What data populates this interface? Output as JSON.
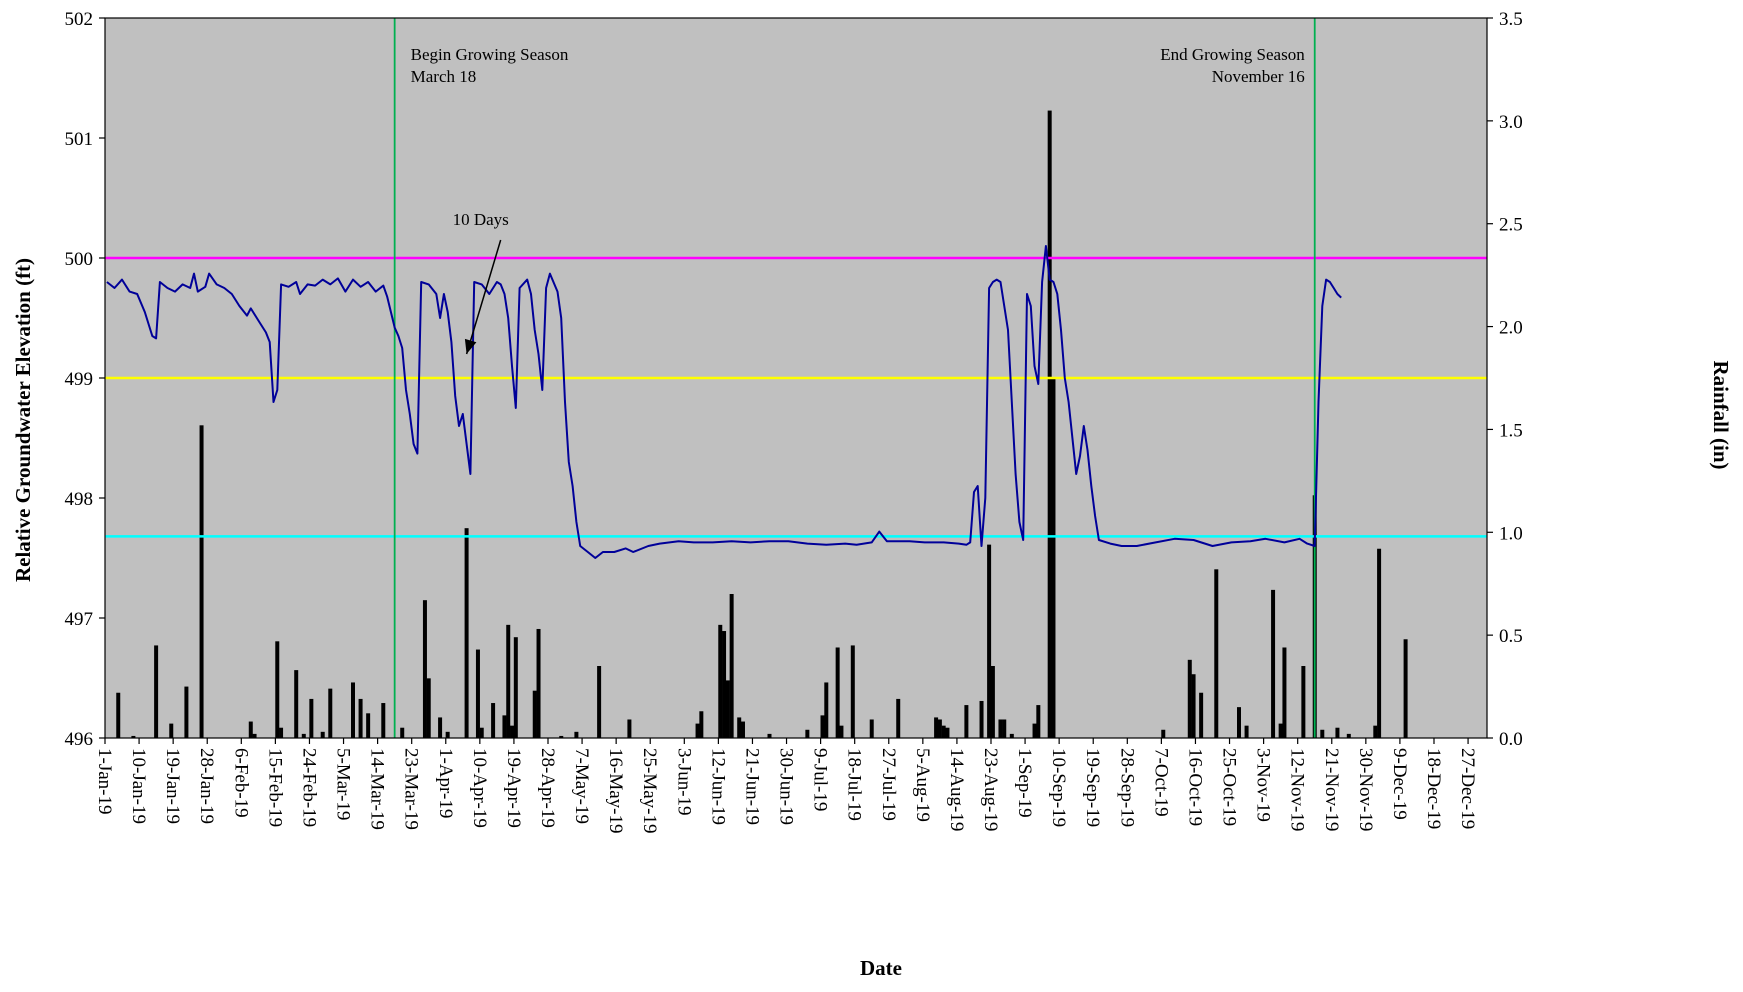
{
  "chart_data": {
    "type": "bar+line",
    "xlabel": "Date",
    "y1label": "Relative Groundwater Elevation (ft)",
    "y2label": "Rainfall (in)",
    "x_range": [
      "2019-01-01",
      "2019-12-31"
    ],
    "y1lim": [
      496,
      502
    ],
    "y1ticks": [
      "496",
      "497",
      "498",
      "499",
      "500",
      "501",
      "502"
    ],
    "y2lim": [
      0,
      3.5
    ],
    "y2ticks": [
      "0.0",
      "0.5",
      "1.0",
      "1.5",
      "2.0",
      "2.5",
      "3.0",
      "3.5"
    ],
    "x_tick_dates": [
      "2019-01-01",
      "2019-01-10",
      "2019-01-19",
      "2019-01-28",
      "2019-02-06",
      "2019-02-15",
      "2019-02-24",
      "2019-03-05",
      "2019-03-14",
      "2019-03-23",
      "2019-04-01",
      "2019-04-10",
      "2019-04-19",
      "2019-04-28",
      "2019-05-07",
      "2019-05-16",
      "2019-05-25",
      "2019-06-03",
      "2019-06-12",
      "2019-06-21",
      "2019-06-30",
      "2019-07-09",
      "2019-07-18",
      "2019-07-27",
      "2019-08-05",
      "2019-08-14",
      "2019-08-23",
      "2019-09-01",
      "2019-09-10",
      "2019-09-19",
      "2019-09-28",
      "2019-10-07",
      "2019-10-16",
      "2019-10-25",
      "2019-11-03",
      "2019-11-12",
      "2019-11-21",
      "2019-11-30",
      "2019-12-09",
      "2019-12-18",
      "2019-12-27"
    ],
    "x_tick_labels": [
      "1-Jan-19",
      "10-Jan-19",
      "19-Jan-19",
      "28-Jan-19",
      "6-Feb-19",
      "15-Feb-19",
      "24-Feb-19",
      "5-Mar-19",
      "14-Mar-19",
      "23-Mar-19",
      "1-Apr-19",
      "10-Apr-19",
      "19-Apr-19",
      "28-Apr-19",
      "7-May-19",
      "16-May-19",
      "25-May-19",
      "3-Jun-19",
      "12-Jun-19",
      "21-Jun-19",
      "30-Jun-19",
      "9-Jul-19",
      "18-Jul-19",
      "27-Jul-19",
      "5-Aug-19",
      "14-Aug-19",
      "23-Aug-19",
      "1-Sep-19",
      "10-Sep-19",
      "19-Sep-19",
      "28-Sep-19",
      "7-Oct-19",
      "16-Oct-19",
      "25-Oct-19",
      "3-Nov-19",
      "12-Nov-19",
      "21-Nov-19",
      "30-Nov-19",
      "9-Dec-19",
      "18-Dec-19",
      "27-Dec-19"
    ],
    "reference_lines": [
      {
        "y": 500.0,
        "color": "#ff00ff"
      },
      {
        "y": 499.0,
        "color": "#ffff00"
      },
      {
        "y": 497.68,
        "color": "#00ffff"
      }
    ],
    "vertical_markers": [
      {
        "date": "2019-03-18",
        "color": "#00b050",
        "text": [
          "Begin Growing Season",
          "March 18"
        ],
        "align": "left"
      },
      {
        "date": "2019-11-16",
        "color": "#00b050",
        "text": [
          "End Growing Season",
          "November 16"
        ],
        "align": "right"
      }
    ],
    "arrow_annotation": {
      "text": "10 Days",
      "from": [
        "2019-04-15",
        500.15
      ],
      "to": [
        "2019-04-06",
        499.2
      ]
    },
    "plot_background": "#c0c0c0",
    "groundwater": {
      "axis": "left",
      "color": "#000099",
      "points": [
        [
          "2019-01-01",
          499.8
        ],
        [
          "2019-01-03",
          499.75
        ],
        [
          "2019-01-05",
          499.82
        ],
        [
          "2019-01-07",
          499.72
        ],
        [
          "2019-01-09",
          499.7
        ],
        [
          "2019-01-11",
          499.55
        ],
        [
          "2019-01-13",
          499.35
        ],
        [
          "2019-01-14",
          499.33
        ],
        [
          "2019-01-15",
          499.8
        ],
        [
          "2019-01-17",
          499.75
        ],
        [
          "2019-01-19",
          499.72
        ],
        [
          "2019-01-21",
          499.78
        ],
        [
          "2019-01-23",
          499.75
        ],
        [
          "2019-01-24",
          499.87
        ],
        [
          "2019-01-25",
          499.72
        ],
        [
          "2019-01-27",
          499.76
        ],
        [
          "2019-01-28",
          499.87
        ],
        [
          "2019-01-30",
          499.78
        ],
        [
          "2019-02-01",
          499.75
        ],
        [
          "2019-02-03",
          499.7
        ],
        [
          "2019-02-05",
          499.6
        ],
        [
          "2019-02-07",
          499.52
        ],
        [
          "2019-02-08",
          499.58
        ],
        [
          "2019-02-10",
          499.48
        ],
        [
          "2019-02-12",
          499.38
        ],
        [
          "2019-02-13",
          499.3
        ],
        [
          "2019-02-14",
          498.8
        ],
        [
          "2019-02-15",
          498.9
        ],
        [
          "2019-02-16",
          499.78
        ],
        [
          "2019-02-18",
          499.76
        ],
        [
          "2019-02-20",
          499.8
        ],
        [
          "2019-02-21",
          499.7
        ],
        [
          "2019-02-23",
          499.78
        ],
        [
          "2019-02-25",
          499.77
        ],
        [
          "2019-02-27",
          499.82
        ],
        [
          "2019-03-01",
          499.78
        ],
        [
          "2019-03-03",
          499.83
        ],
        [
          "2019-03-05",
          499.72
        ],
        [
          "2019-03-07",
          499.82
        ],
        [
          "2019-03-09",
          499.76
        ],
        [
          "2019-03-11",
          499.8
        ],
        [
          "2019-03-13",
          499.72
        ],
        [
          "2019-03-15",
          499.77
        ],
        [
          "2019-03-16",
          499.68
        ],
        [
          "2019-03-17",
          499.55
        ],
        [
          "2019-03-18",
          499.42
        ],
        [
          "2019-03-19",
          499.35
        ],
        [
          "2019-03-20",
          499.25
        ],
        [
          "2019-03-21",
          498.9
        ],
        [
          "2019-03-22",
          498.7
        ],
        [
          "2019-03-23",
          498.45
        ],
        [
          "2019-03-24",
          498.37
        ],
        [
          "2019-03-25",
          499.8
        ],
        [
          "2019-03-27",
          499.78
        ],
        [
          "2019-03-29",
          499.7
        ],
        [
          "2019-03-30",
          499.5
        ],
        [
          "2019-03-31",
          499.7
        ],
        [
          "2019-04-01",
          499.55
        ],
        [
          "2019-04-02",
          499.3
        ],
        [
          "2019-04-03",
          498.85
        ],
        [
          "2019-04-04",
          498.6
        ],
        [
          "2019-04-05",
          498.7
        ],
        [
          "2019-04-07",
          498.2
        ],
        [
          "2019-04-08",
          499.8
        ],
        [
          "2019-04-10",
          499.78
        ],
        [
          "2019-04-12",
          499.7
        ],
        [
          "2019-04-14",
          499.8
        ],
        [
          "2019-04-15",
          499.78
        ],
        [
          "2019-04-16",
          499.7
        ],
        [
          "2019-04-17",
          499.5
        ],
        [
          "2019-04-18",
          499.1
        ],
        [
          "2019-04-19",
          498.75
        ],
        [
          "2019-04-20",
          499.75
        ],
        [
          "2019-04-22",
          499.82
        ],
        [
          "2019-04-23",
          499.7
        ],
        [
          "2019-04-24",
          499.4
        ],
        [
          "2019-04-25",
          499.2
        ],
        [
          "2019-04-26",
          498.9
        ],
        [
          "2019-04-27",
          499.75
        ],
        [
          "2019-04-28",
          499.87
        ],
        [
          "2019-04-30",
          499.72
        ],
        [
          "2019-05-01",
          499.5
        ],
        [
          "2019-05-02",
          498.8
        ],
        [
          "2019-05-03",
          498.3
        ],
        [
          "2019-05-04",
          498.1
        ],
        [
          "2019-05-05",
          497.8
        ],
        [
          "2019-05-06",
          497.6
        ],
        [
          "2019-05-08",
          497.55
        ],
        [
          "2019-05-10",
          497.5
        ],
        [
          "2019-05-12",
          497.55
        ],
        [
          "2019-05-15",
          497.55
        ],
        [
          "2019-05-18",
          497.58
        ],
        [
          "2019-05-20",
          497.55
        ],
        [
          "2019-05-24",
          497.6
        ],
        [
          "2019-05-27",
          497.62
        ],
        [
          "2019-06-01",
          497.64
        ],
        [
          "2019-06-05",
          497.63
        ],
        [
          "2019-06-10",
          497.63
        ],
        [
          "2019-06-15",
          497.64
        ],
        [
          "2019-06-20",
          497.63
        ],
        [
          "2019-06-25",
          497.64
        ],
        [
          "2019-06-30",
          497.64
        ],
        [
          "2019-07-05",
          497.62
        ],
        [
          "2019-07-10",
          497.61
        ],
        [
          "2019-07-15",
          497.62
        ],
        [
          "2019-07-18",
          497.61
        ],
        [
          "2019-07-22",
          497.63
        ],
        [
          "2019-07-24",
          497.72
        ],
        [
          "2019-07-26",
          497.64
        ],
        [
          "2019-08-01",
          497.64
        ],
        [
          "2019-08-05",
          497.63
        ],
        [
          "2019-08-10",
          497.63
        ],
        [
          "2019-08-14",
          497.62
        ],
        [
          "2019-08-16",
          497.61
        ],
        [
          "2019-08-17",
          497.63
        ],
        [
          "2019-08-18",
          498.05
        ],
        [
          "2019-08-19",
          498.1
        ],
        [
          "2019-08-20",
          497.6
        ],
        [
          "2019-08-21",
          498.0
        ],
        [
          "2019-08-22",
          499.75
        ],
        [
          "2019-08-23",
          499.8
        ],
        [
          "2019-08-24",
          499.82
        ],
        [
          "2019-08-25",
          499.8
        ],
        [
          "2019-08-27",
          499.4
        ],
        [
          "2019-08-28",
          498.8
        ],
        [
          "2019-08-29",
          498.2
        ],
        [
          "2019-08-30",
          497.8
        ],
        [
          "2019-08-31",
          497.65
        ],
        [
          "2019-09-01",
          499.7
        ],
        [
          "2019-09-02",
          499.6
        ],
        [
          "2019-09-03",
          499.1
        ],
        [
          "2019-09-04",
          498.95
        ],
        [
          "2019-09-05",
          499.8
        ],
        [
          "2019-09-06",
          500.1
        ],
        [
          "2019-09-07",
          499.82
        ],
        [
          "2019-09-08",
          499.8
        ],
        [
          "2019-09-09",
          499.7
        ],
        [
          "2019-09-10",
          499.4
        ],
        [
          "2019-09-11",
          499.0
        ],
        [
          "2019-09-12",
          498.8
        ],
        [
          "2019-09-13",
          498.5
        ],
        [
          "2019-09-14",
          498.2
        ],
        [
          "2019-09-15",
          498.35
        ],
        [
          "2019-09-16",
          498.6
        ],
        [
          "2019-09-17",
          498.4
        ],
        [
          "2019-09-18",
          498.1
        ],
        [
          "2019-09-19",
          497.85
        ],
        [
          "2019-09-20",
          497.65
        ],
        [
          "2019-09-23",
          497.62
        ],
        [
          "2019-09-26",
          497.6
        ],
        [
          "2019-09-30",
          497.6
        ],
        [
          "2019-10-05",
          497.63
        ],
        [
          "2019-10-10",
          497.66
        ],
        [
          "2019-10-15",
          497.65
        ],
        [
          "2019-10-20",
          497.6
        ],
        [
          "2019-10-25",
          497.63
        ],
        [
          "2019-10-30",
          497.64
        ],
        [
          "2019-11-03",
          497.66
        ],
        [
          "2019-11-08",
          497.63
        ],
        [
          "2019-11-12",
          497.66
        ],
        [
          "2019-11-14",
          497.62
        ],
        [
          "2019-11-16",
          497.6
        ],
        [
          "2019-11-17",
          498.8
        ],
        [
          "2019-11-18",
          499.6
        ],
        [
          "2019-11-19",
          499.82
        ],
        [
          "2019-11-20",
          499.8
        ],
        [
          "2019-11-21",
          499.75
        ],
        [
          "2019-11-22",
          499.7
        ],
        [
          "2019-11-23",
          499.67
        ]
      ]
    },
    "rainfall": {
      "axis": "right",
      "color": "#000000",
      "bars": [
        [
          "2019-01-04",
          0.22
        ],
        [
          "2019-01-08",
          0.01
        ],
        [
          "2019-01-14",
          0.45
        ],
        [
          "2019-01-18",
          0.07
        ],
        [
          "2019-01-22",
          0.25
        ],
        [
          "2019-01-26",
          1.52
        ],
        [
          "2019-02-08",
          0.08
        ],
        [
          "2019-02-09",
          0.02
        ],
        [
          "2019-02-15",
          0.47
        ],
        [
          "2019-02-16",
          0.05
        ],
        [
          "2019-02-20",
          0.33
        ],
        [
          "2019-02-22",
          0.02
        ],
        [
          "2019-02-24",
          0.19
        ],
        [
          "2019-02-27",
          0.03
        ],
        [
          "2019-03-01",
          0.24
        ],
        [
          "2019-03-07",
          0.27
        ],
        [
          "2019-03-09",
          0.19
        ],
        [
          "2019-03-11",
          0.12
        ],
        [
          "2019-03-15",
          0.17
        ],
        [
          "2019-03-20",
          0.05
        ],
        [
          "2019-03-26",
          0.67
        ],
        [
          "2019-03-27",
          0.29
        ],
        [
          "2019-03-30",
          0.1
        ],
        [
          "2019-04-01",
          0.03
        ],
        [
          "2019-04-06",
          1.02
        ],
        [
          "2019-04-09",
          0.43
        ],
        [
          "2019-04-10",
          0.05
        ],
        [
          "2019-04-13",
          0.17
        ],
        [
          "2019-04-16",
          0.11
        ],
        [
          "2019-04-17",
          0.55
        ],
        [
          "2019-04-18",
          0.06
        ],
        [
          "2019-04-19",
          0.49
        ],
        [
          "2019-04-24",
          0.23
        ],
        [
          "2019-04-25",
          0.53
        ],
        [
          "2019-05-01",
          0.01
        ],
        [
          "2019-05-05",
          0.03
        ],
        [
          "2019-05-11",
          0.35
        ],
        [
          "2019-05-19",
          0.09
        ],
        [
          "2019-06-06",
          0.07
        ],
        [
          "2019-06-07",
          0.13
        ],
        [
          "2019-06-12",
          0.55
        ],
        [
          "2019-06-13",
          0.52
        ],
        [
          "2019-06-14",
          0.28
        ],
        [
          "2019-06-15",
          0.7
        ],
        [
          "2019-06-17",
          0.1
        ],
        [
          "2019-06-18",
          0.08
        ],
        [
          "2019-06-25",
          0.02
        ],
        [
          "2019-07-05",
          0.04
        ],
        [
          "2019-07-09",
          0.11
        ],
        [
          "2019-07-10",
          0.27
        ],
        [
          "2019-07-13",
          0.44
        ],
        [
          "2019-07-14",
          0.06
        ],
        [
          "2019-07-17",
          0.45
        ],
        [
          "2019-07-22",
          0.09
        ],
        [
          "2019-07-29",
          0.19
        ],
        [
          "2019-08-08",
          0.1
        ],
        [
          "2019-08-09",
          0.09
        ],
        [
          "2019-08-10",
          0.06
        ],
        [
          "2019-08-11",
          0.05
        ],
        [
          "2019-08-16",
          0.16
        ],
        [
          "2019-08-20",
          0.18
        ],
        [
          "2019-08-22",
          0.94
        ],
        [
          "2019-08-23",
          0.35
        ],
        [
          "2019-08-25",
          0.09
        ],
        [
          "2019-08-26",
          0.09
        ],
        [
          "2019-08-28",
          0.02
        ],
        [
          "2019-09-03",
          0.07
        ],
        [
          "2019-09-04",
          0.16
        ],
        [
          "2019-09-07",
          3.05
        ],
        [
          "2019-09-08",
          1.75
        ],
        [
          "2019-10-07",
          0.04
        ],
        [
          "2019-10-14",
          0.38
        ],
        [
          "2019-10-15",
          0.31
        ],
        [
          "2019-10-17",
          0.22
        ],
        [
          "2019-10-21",
          0.82
        ],
        [
          "2019-10-27",
          0.15
        ],
        [
          "2019-10-29",
          0.06
        ],
        [
          "2019-11-05",
          0.72
        ],
        [
          "2019-11-07",
          0.07
        ],
        [
          "2019-11-08",
          0.44
        ],
        [
          "2019-11-13",
          0.35
        ],
        [
          "2019-11-16",
          1.18
        ],
        [
          "2019-11-18",
          0.04
        ],
        [
          "2019-11-22",
          0.05
        ],
        [
          "2019-11-25",
          0.02
        ],
        [
          "2019-12-02",
          0.06
        ],
        [
          "2019-12-03",
          0.92
        ],
        [
          "2019-12-10",
          0.48
        ]
      ]
    }
  }
}
